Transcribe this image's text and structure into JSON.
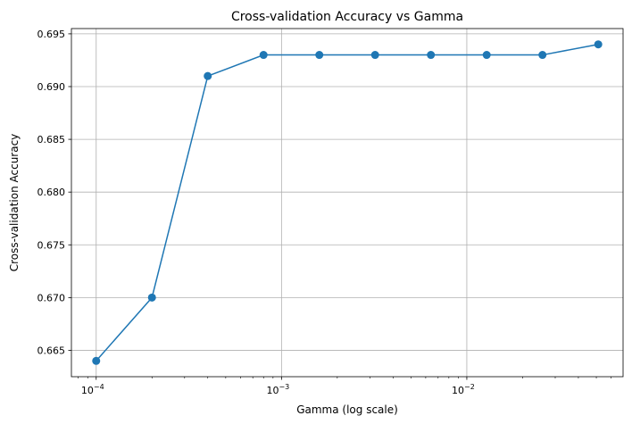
{
  "chart_data": {
    "type": "line",
    "title": "Cross-validation Accuracy vs Gamma",
    "xlabel": "Gamma (log scale)",
    "ylabel": "Cross-validation Accuracy",
    "x_scale": "log",
    "grid": true,
    "series": [
      {
        "x": [
          0.0001,
          0.0002,
          0.0004,
          0.0008,
          0.0016,
          0.0032,
          0.0064,
          0.0128,
          0.0256,
          0.0512
        ],
        "y": [
          0.664,
          0.67,
          0.691,
          0.693,
          0.693,
          0.693,
          0.693,
          0.693,
          0.693,
          0.694
        ],
        "color": "#1f77b4",
        "marker": "circle"
      }
    ],
    "xticks": [
      {
        "value": 0.0001,
        "base": "10",
        "exp": "−4"
      },
      {
        "value": 0.001,
        "base": "10",
        "exp": "−3"
      },
      {
        "value": 0.01,
        "base": "10",
        "exp": "−2"
      }
    ],
    "yticks": [
      {
        "value": 0.665,
        "label": "0.665"
      },
      {
        "value": 0.67,
        "label": "0.670"
      },
      {
        "value": 0.675,
        "label": "0.675"
      },
      {
        "value": 0.68,
        "label": "0.680"
      },
      {
        "value": 0.685,
        "label": "0.685"
      },
      {
        "value": 0.69,
        "label": "0.690"
      },
      {
        "value": 0.695,
        "label": "0.695"
      }
    ],
    "xlim": [
      7.35e-05,
      0.0697
    ],
    "ylim": [
      0.6625,
      0.6955
    ]
  }
}
